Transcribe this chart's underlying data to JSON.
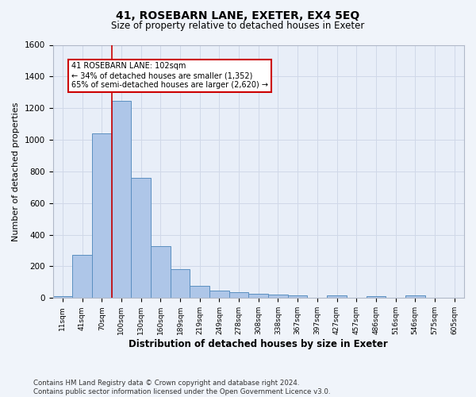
{
  "title": "41, ROSEBARN LANE, EXETER, EX4 5EQ",
  "subtitle": "Size of property relative to detached houses in Exeter",
  "xlabel": "Distribution of detached houses by size in Exeter",
  "ylabel": "Number of detached properties",
  "bin_labels": [
    "11sqm",
    "41sqm",
    "70sqm",
    "100sqm",
    "130sqm",
    "160sqm",
    "189sqm",
    "219sqm",
    "249sqm",
    "278sqm",
    "308sqm",
    "338sqm",
    "367sqm",
    "397sqm",
    "427sqm",
    "457sqm",
    "486sqm",
    "516sqm",
    "546sqm",
    "575sqm",
    "605sqm"
  ],
  "bar_heights": [
    10,
    275,
    1040,
    1245,
    760,
    330,
    180,
    75,
    45,
    38,
    28,
    20,
    15,
    0,
    15,
    0,
    10,
    0,
    15,
    0,
    0
  ],
  "bar_color": "#aec6e8",
  "bar_edge_color": "#5a8fc0",
  "vline_color": "#cc0000",
  "annotation_text": "41 ROSEBARN LANE: 102sqm\n← 34% of detached houses are smaller (1,352)\n65% of semi-detached houses are larger (2,620) →",
  "annotation_box_color": "#cc0000",
  "annotation_fill": "#ffffff",
  "ylim": [
    0,
    1600
  ],
  "yticks": [
    0,
    200,
    400,
    600,
    800,
    1000,
    1200,
    1400,
    1600
  ],
  "grid_color": "#d0d8e8",
  "bg_color": "#e8eef8",
  "fig_bg_color": "#f0f4fa",
  "footer": "Contains HM Land Registry data © Crown copyright and database right 2024.\nContains public sector information licensed under the Open Government Licence v3.0."
}
